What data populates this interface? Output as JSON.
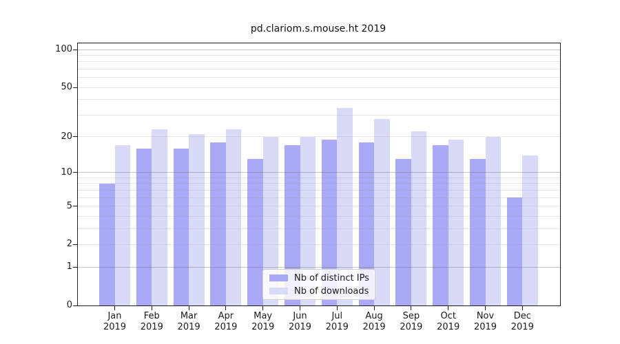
{
  "chart_data": {
    "type": "bar",
    "title": "pd.clariom.s.mouse.ht 2019",
    "x_months": [
      "Jan",
      "Feb",
      "Mar",
      "Apr",
      "May",
      "Jun",
      "Jul",
      "Aug",
      "Sep",
      "Oct",
      "Nov",
      "Dec"
    ],
    "x_year": "2019",
    "series": [
      {
        "name": "Nb of distinct IPs",
        "color": "#a9a9f7",
        "values": [
          8,
          16,
          16,
          18,
          13,
          17,
          19,
          18,
          13,
          17,
          13,
          6
        ]
      },
      {
        "name": "Nb of downloads",
        "color": "#d9d9f8",
        "values": [
          17,
          23,
          21,
          23,
          20,
          20,
          34,
          28,
          22,
          19,
          20,
          14
        ]
      }
    ],
    "yscale": "log1p",
    "ylim": [
      0,
      112
    ],
    "y_ticks": [
      0,
      1,
      2,
      5,
      10,
      20,
      50,
      100
    ],
    "y_tick_labels": [
      "0",
      "1",
      "2",
      "5",
      "10",
      "20",
      "50",
      "100"
    ],
    "y_major_gridlines": [
      1,
      10,
      100
    ],
    "y_minor_gridlines": [
      2,
      3,
      4,
      5,
      6,
      7,
      8,
      9,
      20,
      30,
      40,
      50,
      60,
      70,
      80,
      90
    ],
    "grid": true,
    "legend_position": "lower-center"
  },
  "colors": {
    "axis": "#1c1c1c",
    "grid_major": "rgba(105,105,105,0.40)",
    "grid_minor": "rgba(150,150,150,0.22)",
    "background": "#ffffff"
  }
}
